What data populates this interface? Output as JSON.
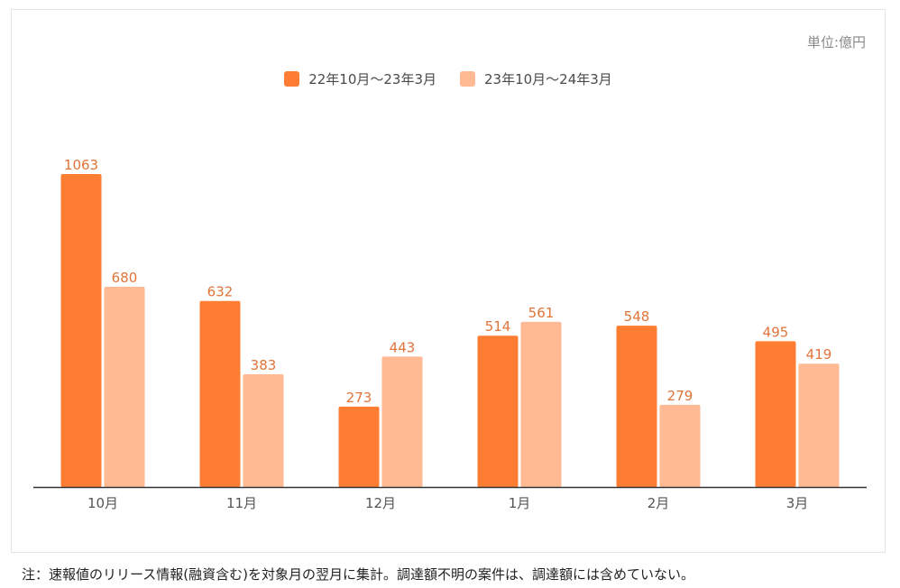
{
  "unit_label": "単位:億円",
  "note": "注：速報値のリリース情報(融資含む)を対象月の翌月に集計。調達額不明の案件は、調達額には含めていない。",
  "colors": {
    "series1": "#fd7e33",
    "series2": "#ffb993",
    "label": "#e0743a",
    "axis": "#333333",
    "tick": "#555555"
  },
  "chart_data": {
    "type": "bar",
    "categories": [
      "10月",
      "11月",
      "12月",
      "1月",
      "2月",
      "3月"
    ],
    "series": [
      {
        "name": "22年10月～23年3月",
        "values": [
          1063,
          632,
          273,
          514,
          548,
          495
        ]
      },
      {
        "name": "23年10月～24年3月",
        "values": [
          680,
          383,
          443,
          561,
          279,
          419
        ]
      }
    ],
    "ylim": [
      0,
      1063
    ],
    "grid": false,
    "legend_position": "top-center",
    "data_labels": true
  }
}
